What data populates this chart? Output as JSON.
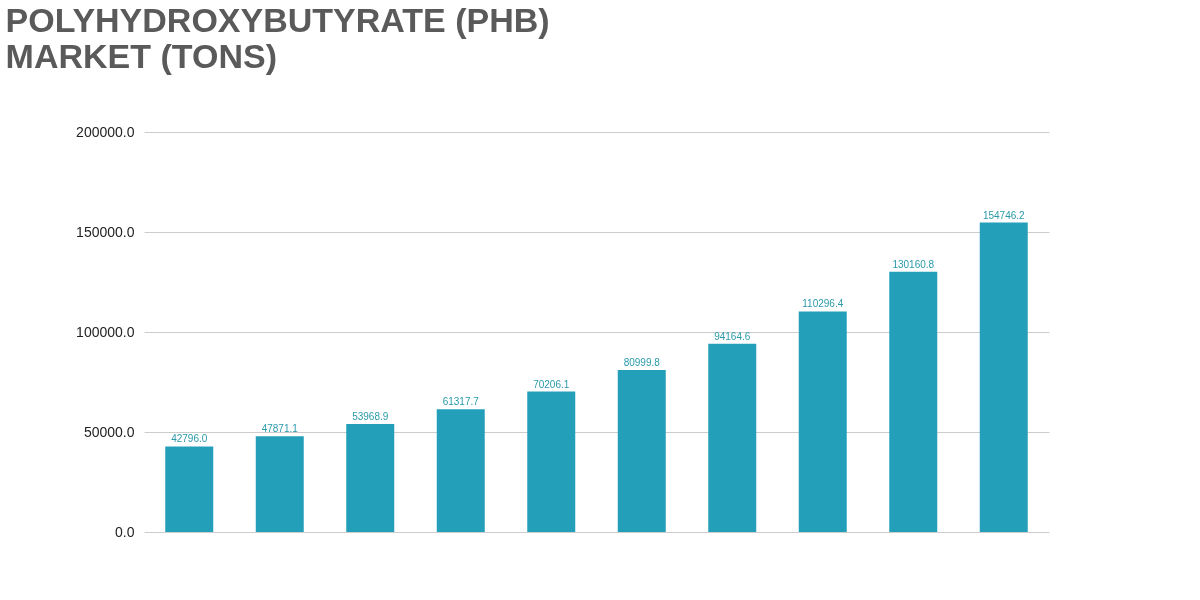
{
  "chart_data": {
    "type": "bar",
    "title": [
      "POLYHYDROXYBUTYRATE (PHB)",
      "MARKET (TONS)"
    ],
    "categories": [
      null,
      null,
      null,
      null,
      null,
      null,
      null,
      null,
      null,
      null
    ],
    "values": [
      42796.0,
      47871.1,
      53968.9,
      61317.7,
      70206.1,
      80999.8,
      94164.6,
      110296.4,
      130160.8,
      154746.2
    ],
    "value_labels": [
      "42796.0",
      "47871.1",
      "53968.9",
      "61317.7",
      "70206.1",
      "80999.8",
      "94164.6",
      "110296.4",
      "130160.8",
      "154746.2"
    ],
    "color": "#249fba",
    "ylim": [
      0,
      200000
    ],
    "yticks": [
      {
        "value": 0,
        "label": "0.0"
      },
      {
        "value": 50000,
        "label": "50000.0"
      },
      {
        "value": 100000,
        "label": "100000.0"
      },
      {
        "value": 150000,
        "label": "150000.0"
      },
      {
        "value": 200000,
        "label": "200000.0"
      }
    ],
    "grid": "y"
  }
}
